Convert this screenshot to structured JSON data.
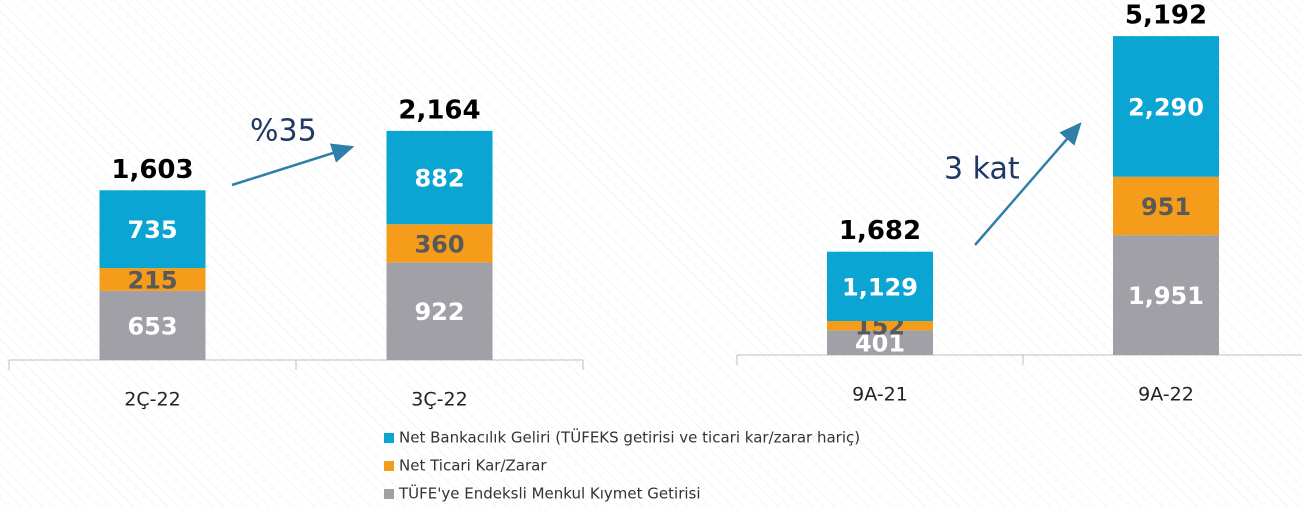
{
  "chart_data": [
    {
      "type": "stacked_bar",
      "categories": [
        "2Ç-22",
        "3Ç-22"
      ],
      "ylim": [
        0,
        3400
      ],
      "series": [
        {
          "name": "TÜFE'ye Endeksli Menkul Kıymet Getirisi",
          "color": "#a0a0a6",
          "values": [
            653,
            922
          ]
        },
        {
          "name": "Net Ticari Kar/Zarar",
          "color": "#f59c1a",
          "values": [
            215,
            360
          ]
        },
        {
          "name": "Net Bankacılık Geliri (TÜFEKS getirisi ve ticari kar/zarar hariç)",
          "color": "#0aa5d2",
          "values": [
            735,
            882
          ]
        }
      ],
      "totals": [
        1603,
        2164
      ],
      "total_labels": [
        "1,603",
        "2,164"
      ],
      "annotation": "%35"
    },
    {
      "type": "stacked_bar",
      "categories": [
        "9A-21",
        "9A-22"
      ],
      "ylim": [
        0,
        5780
      ],
      "series": [
        {
          "color": "#a0a0a6",
          "values": [
            401,
            1951
          ],
          "value_labels": [
            "401",
            "1,951"
          ]
        },
        {
          "color": "#f59c1a",
          "values": [
            152,
            951
          ],
          "value_labels": [
            "152",
            "951"
          ]
        },
        {
          "color": "#0aa5d2",
          "values": [
            1129,
            2290
          ],
          "value_labels": [
            "1,129",
            "2,290"
          ]
        }
      ],
      "totals": [
        1682,
        5192
      ],
      "total_labels": [
        "1,682",
        "5,192"
      ],
      "annotation": "3 kat"
    }
  ]
}
